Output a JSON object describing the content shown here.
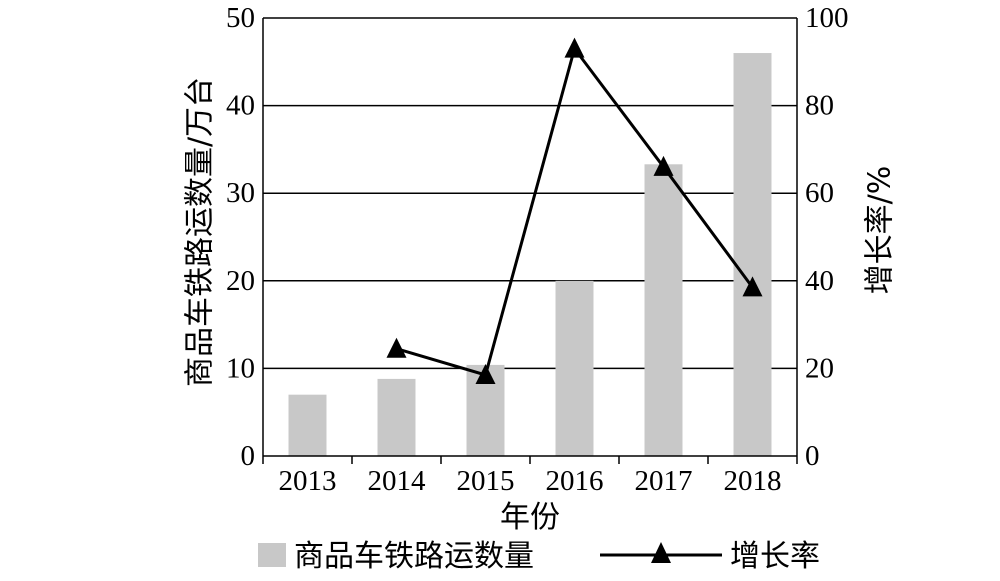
{
  "chart_data": {
    "type": "bar",
    "categories": [
      "2013",
      "2014",
      "2015",
      "2016",
      "2017",
      "2018"
    ],
    "series": [
      {
        "name": "商品车铁路运数量",
        "type": "bar",
        "axis": "left",
        "values": [
          7.0,
          8.8,
          10.4,
          20.0,
          33.3,
          46.0
        ],
        "color": "#c8c8c8"
      },
      {
        "name": "增长率",
        "type": "line",
        "axis": "right",
        "marker": "triangle",
        "values": [
          null,
          24.5,
          18.5,
          93.0,
          66.0,
          38.5
        ],
        "color": "#000000"
      }
    ],
    "xlabel": "年份",
    "ylabel": "商品车铁路运数量/万台",
    "y2label": "增长率/%",
    "ylim": [
      0,
      50
    ],
    "y2lim": [
      0,
      100
    ],
    "yticks": [
      "0",
      "10",
      "20",
      "30",
      "40",
      "50"
    ],
    "y2ticks": [
      "0",
      "20",
      "40",
      "60",
      "80",
      "100"
    ],
    "grid": true,
    "legend": "bottom"
  }
}
